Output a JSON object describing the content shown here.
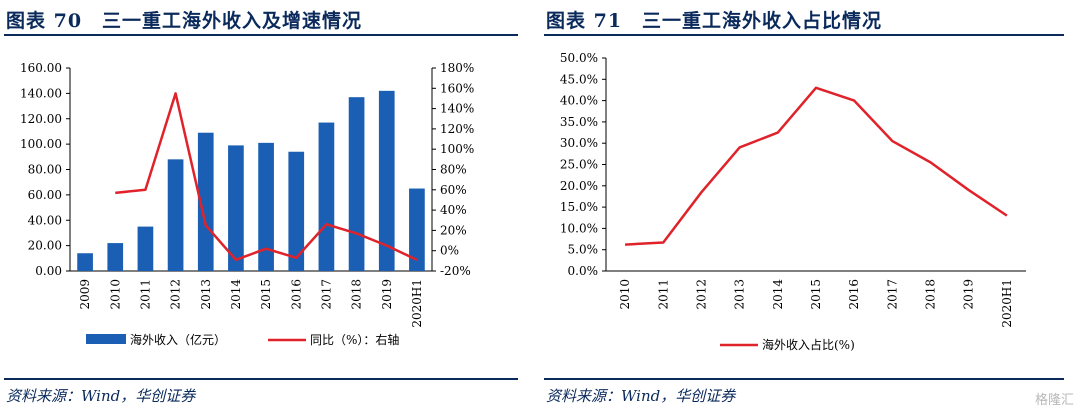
{
  "left": {
    "title": "图表 70　三一重工海外收入及增速情况",
    "source": "资料来源：Wind，华创证券",
    "legend": {
      "bar_label": "海外收入（亿元）",
      "line_label": "同比（%）：右轴"
    }
  },
  "right": {
    "title": "图表 71　三一重工海外收入占比情况",
    "source": "资料来源：Wind，华创证券",
    "legend": {
      "line_label": "海外收入占比(%)"
    }
  },
  "watermark": "格隆汇",
  "colors": {
    "bar": "#1a5fb4",
    "line": "#e0222a",
    "title": "#0b2a5c"
  },
  "chart_data": [
    {
      "type": "bar",
      "categories": [
        "2009",
        "2010",
        "2011",
        "2012",
        "2013",
        "2014",
        "2015",
        "2016",
        "2017",
        "2018",
        "2019",
        "2020H1"
      ],
      "series": [
        {
          "name": "海外收入（亿元）",
          "type": "bar",
          "axis": "left",
          "values": [
            14,
            22,
            35,
            88,
            109,
            99,
            101,
            94,
            117,
            137,
            142,
            65
          ]
        },
        {
          "name": "同比（%）：右轴",
          "type": "line",
          "axis": "right",
          "values": [
            null,
            57,
            60,
            155,
            25,
            -9,
            2,
            -7,
            26,
            17,
            5,
            -9
          ]
        }
      ],
      "y_left_ticks": [
        "0.00",
        "20.00",
        "40.00",
        "60.00",
        "80.00",
        "100.00",
        "120.00",
        "140.00",
        "160.00"
      ],
      "y_right_ticks": [
        "-20%",
        "0%",
        "20%",
        "40%",
        "60%",
        "80%",
        "100%",
        "120%",
        "140%",
        "160%",
        "180%"
      ],
      "ylim_left": [
        0,
        160
      ],
      "ylim_right": [
        -20,
        180
      ],
      "grid": false,
      "legend_position": "bottom"
    },
    {
      "type": "line",
      "categories": [
        "2010",
        "2011",
        "2012",
        "2013",
        "2014",
        "2015",
        "2016",
        "2017",
        "2018",
        "2019",
        "2020H1"
      ],
      "series": [
        {
          "name": "海外收入占比(%)",
          "values": [
            6.2,
            6.7,
            18.5,
            29.0,
            32.5,
            43.0,
            40.0,
            30.5,
            25.5,
            19.0,
            13.0
          ]
        }
      ],
      "y_ticks": [
        "0.0%",
        "5.0%",
        "10.0%",
        "15.0%",
        "20.0%",
        "25.0%",
        "30.0%",
        "35.0%",
        "40.0%",
        "45.0%",
        "50.0%"
      ],
      "ylim": [
        0,
        50
      ],
      "grid": false,
      "legend_position": "bottom"
    }
  ]
}
